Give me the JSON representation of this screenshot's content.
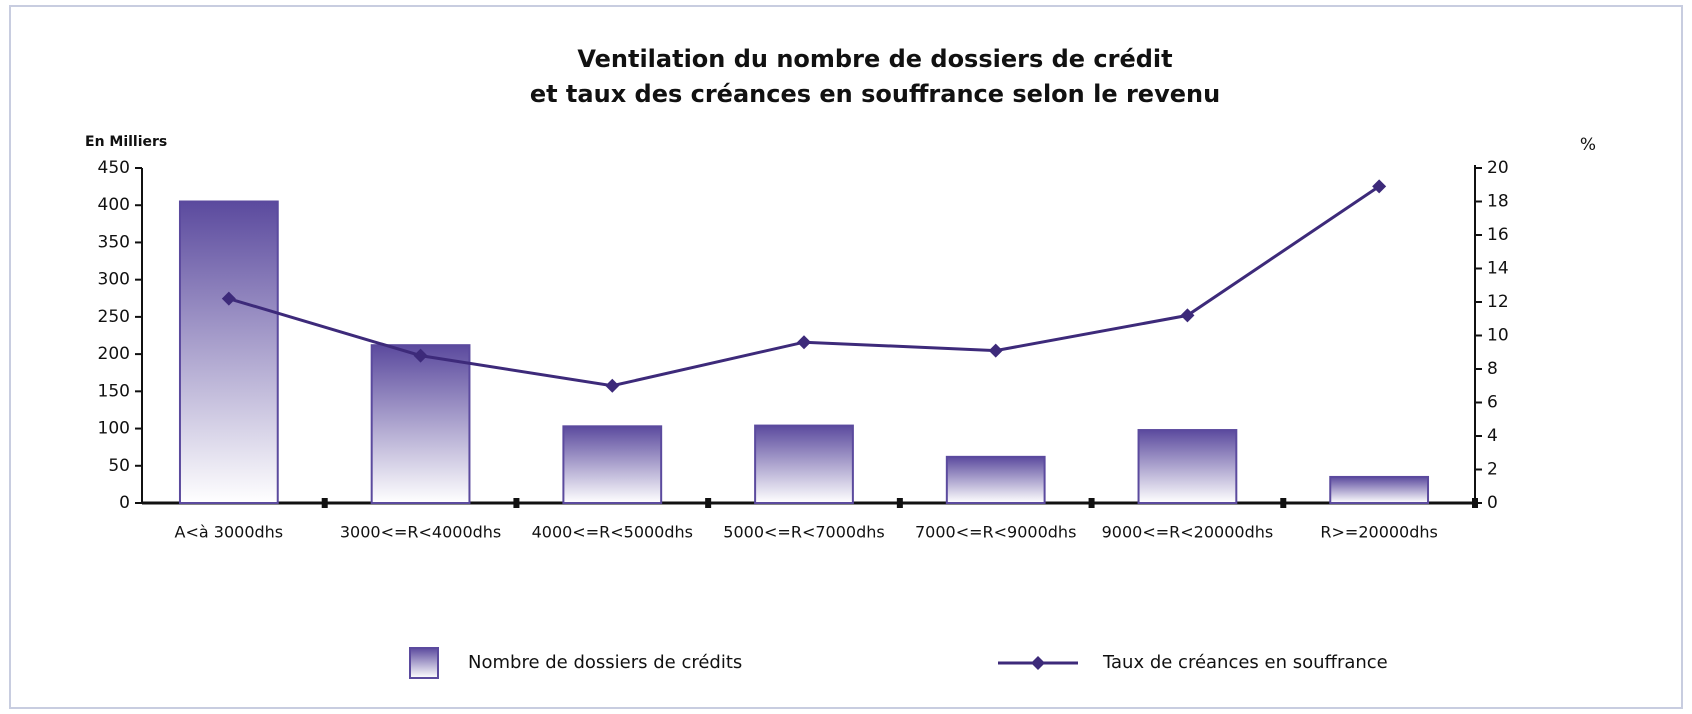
{
  "chart_data": {
    "type": "bar",
    "title": [
      "Ventilation du nombre de dossiers de crédit",
      "et taux des créances en souffrance selon le revenu"
    ],
    "ylabel": "En Milliers",
    "y2label": "%",
    "categories": [
      "A<à 3000dhs",
      "3000<=R<4000dhs",
      "4000<=R<5000dhs",
      "5000<=R<7000dhs",
      "7000<=R<9000dhs",
      "9000<=R<20000dhs",
      "R>=20000dhs"
    ],
    "series": [
      {
        "name": "Nombre de dossiers de crédits",
        "type": "bar",
        "color": "#5b4a9e",
        "values": [
          405,
          212,
          103,
          104,
          62,
          98,
          35
        ]
      },
      {
        "name": "Taux de créances en souffrance",
        "type": "line",
        "axis": "y2",
        "color": "#3d2a7a",
        "values": [
          12.2,
          8.8,
          7.0,
          9.6,
          9.1,
          11.2,
          18.9
        ]
      }
    ],
    "ylim": [
      0,
      450
    ],
    "yticks": [
      0,
      50,
      100,
      150,
      200,
      250,
      300,
      350,
      400,
      450
    ],
    "y2lim": [
      0,
      20
    ],
    "y2ticks": [
      0,
      2,
      4,
      6,
      8,
      10,
      12,
      14,
      16,
      18,
      20
    ]
  }
}
